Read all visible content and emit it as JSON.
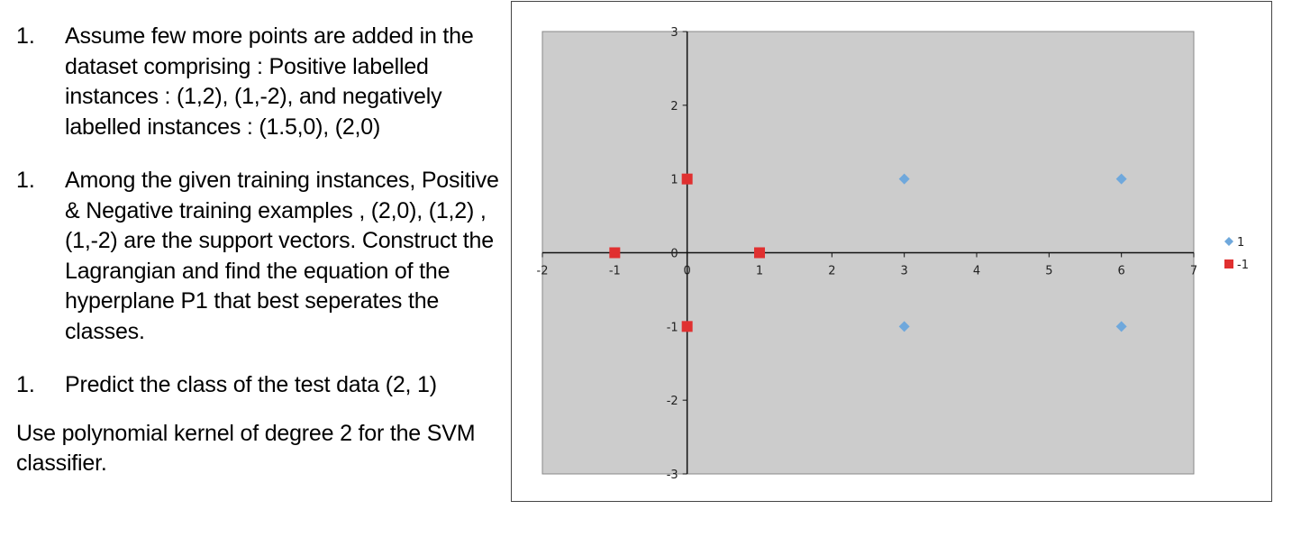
{
  "questions": [
    {
      "num": "1.",
      "text": "Assume few more points are added in the dataset comprising : Positive labelled instances : (1,2), (1,-2), and negatively labelled instances : (1.5,0), (2,0)"
    },
    {
      "num": "1.",
      "text": "Among the given training instances, Positive & Negative training examples , (2,0), (1,2) , (1,-2) are the support vectors. Construct the Lagrangian and find the equation of the hyperplane P1 that best seperates the classes."
    },
    {
      "num": "1.",
      "text": "Predict the class of the test data (2, 1)"
    }
  ],
  "note": "Use polynomial kernel of degree 2 for the SVM classifier.",
  "chart_data": {
    "type": "scatter",
    "xlim": [
      -2,
      7
    ],
    "ylim": [
      -3,
      3
    ],
    "x_ticks": [
      -2,
      -1,
      0,
      1,
      2,
      3,
      4,
      5,
      6,
      7
    ],
    "y_ticks": [
      -3,
      -2,
      -1,
      0,
      1,
      2,
      3
    ],
    "grid": false,
    "plot_background": "#cccccc",
    "legend_position": "right",
    "series": [
      {
        "name": "1",
        "marker": "diamond",
        "color": "#6fa8dc",
        "points": [
          [
            3,
            1
          ],
          [
            6,
            1
          ],
          [
            3,
            -1
          ],
          [
            6,
            -1
          ]
        ]
      },
      {
        "name": "-1",
        "marker": "square",
        "color": "#e03030",
        "points": [
          [
            0,
            1
          ],
          [
            -1,
            0
          ],
          [
            1,
            0
          ],
          [
            0,
            -1
          ]
        ]
      }
    ]
  }
}
